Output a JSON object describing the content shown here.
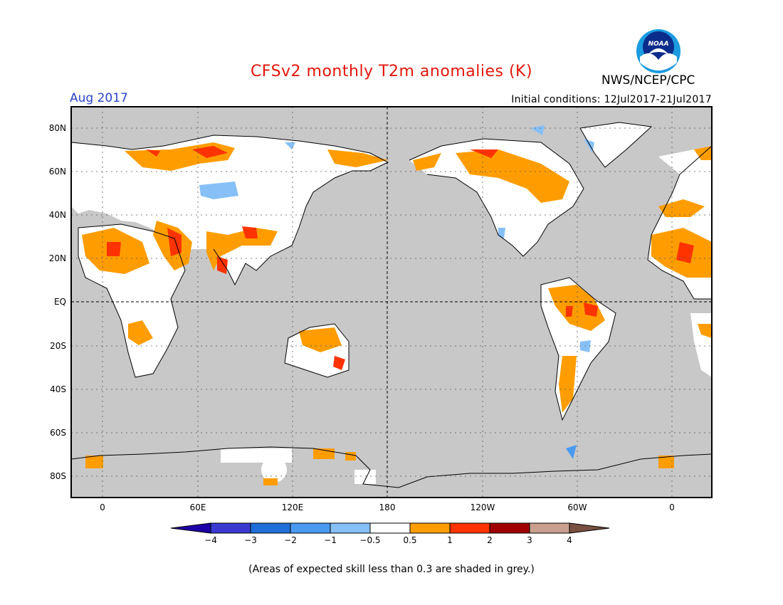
{
  "header": {
    "title": "CFSv2 monthly T2m anomalies (K)",
    "organization": "NWS/NCEP/CPC",
    "logo_text": "NOAA",
    "target_month": "Aug 2017",
    "initial_conditions": "Initial conditions: 12Jul2017-21Jul2017"
  },
  "map": {
    "projection": "cylindrical equidistant",
    "lat_labels": [
      "80N",
      "60N",
      "40N",
      "20N",
      "EQ",
      "20S",
      "40S",
      "60S",
      "80S"
    ],
    "lon_labels": [
      "0",
      "60E",
      "120E",
      "180",
      "120W",
      "60W",
      "0"
    ],
    "background_color": "#c8c8c8",
    "land_neutral_color": "#ffffff"
  },
  "colorbar": {
    "labels": [
      "−4",
      "−3",
      "−2",
      "−1",
      "−0.5",
      "0.5",
      "1",
      "2",
      "3",
      "4"
    ],
    "colors": [
      "#1c00a8",
      "#3a3ad0",
      "#1f6fd8",
      "#4a9af0",
      "#86c0f7",
      "#ffffff",
      "#ff9d00",
      "#ff3300",
      "#a10000",
      "#c9a08f",
      "#7a5040"
    ]
  },
  "footnote": "(Areas of expected skill less than 0.3 are shaded in grey.)"
}
